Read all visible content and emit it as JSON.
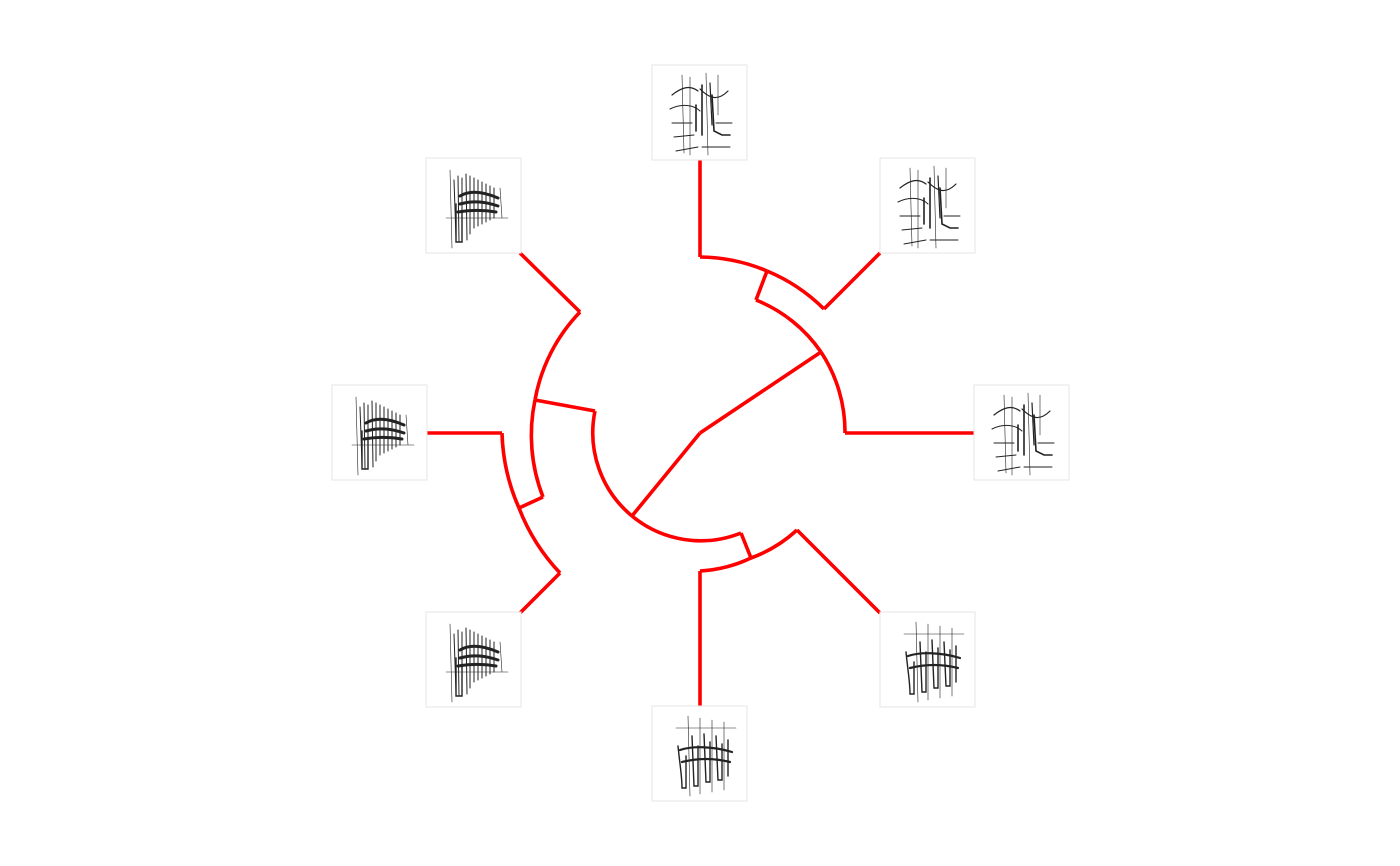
{
  "figure": {
    "kind": "circular-dendrogram",
    "branch_color": "#ff0000",
    "leaf_count": 8,
    "leaves": [
      {
        "id": "leaf-top",
        "position": "top",
        "icon": "spectrogram-harmonic-icon"
      },
      {
        "id": "leaf-top-right",
        "position": "top-right",
        "icon": "spectrogram-harmonic-icon"
      },
      {
        "id": "leaf-right",
        "position": "right",
        "icon": "spectrogram-harmonic-icon"
      },
      {
        "id": "leaf-bottom-right",
        "position": "bottom-right",
        "icon": "spectrogram-pulses-icon"
      },
      {
        "id": "leaf-bottom",
        "position": "bottom",
        "icon": "spectrogram-pulses-icon"
      },
      {
        "id": "leaf-bottom-left",
        "position": "bottom-left",
        "icon": "spectrogram-noise-icon"
      },
      {
        "id": "leaf-left",
        "position": "left",
        "icon": "spectrogram-noise-icon"
      },
      {
        "id": "leaf-top-left",
        "position": "top-left",
        "icon": "spectrogram-noise-icon"
      }
    ]
  }
}
